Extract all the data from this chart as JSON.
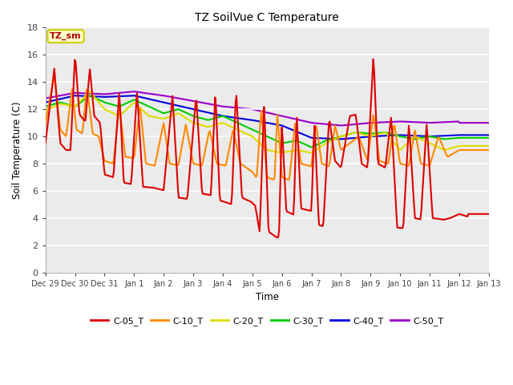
{
  "title": "TZ SoilVue C Temperature",
  "xlabel": "Time",
  "ylabel": "Soil Temperature (C)",
  "ylim": [
    0,
    18
  ],
  "yticks": [
    0,
    2,
    4,
    6,
    8,
    10,
    12,
    14,
    16,
    18
  ],
  "xtick_labels": [
    "Dec 29",
    "Dec 30",
    "Dec 31",
    "Jan 1",
    "Jan 2",
    "Jan 3",
    "Jan 4",
    "Jan 5",
    "Jan 6",
    "Jan 7",
    "Jan 8",
    "Jan 9",
    "Jan 10",
    "Jan 11",
    "Jan 12",
    "Jan 13"
  ],
  "annotation_text": "TZ_sm",
  "annotation_color": "#aa0000",
  "annotation_bg": "#ffffc8",
  "annotation_border": "#cccc00",
  "series_colors": {
    "C-05_T": "#dd0000",
    "C-10_T": "#ff8800",
    "C-20_T": "#dddd00",
    "C-30_T": "#00cc00",
    "C-40_T": "#0000dd",
    "C-50_T": "#9900cc"
  },
  "plot_bg": "#ebebeb",
  "fig_bg": "#ffffff"
}
